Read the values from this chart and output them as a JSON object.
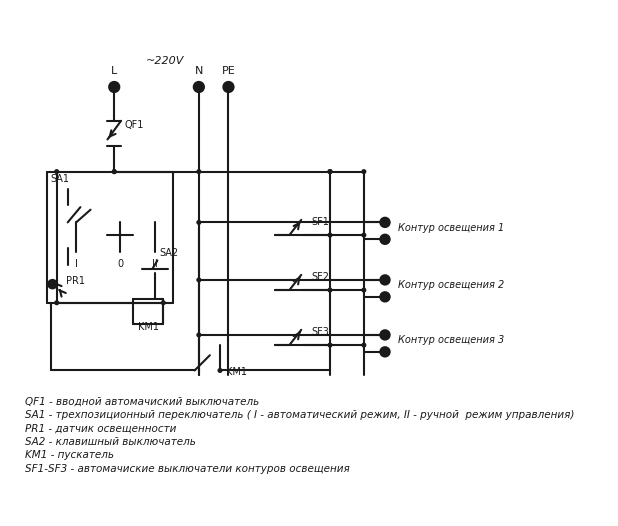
{
  "background_color": "#ffffff",
  "line_color": "#1a1a1a",
  "line_width": 1.5,
  "title_220v": "~220V",
  "label_L": "L",
  "label_N": "N",
  "label_PE": "PE",
  "label_QF1": "QF1",
  "label_SA1": "SA1",
  "label_PR1": "PR1",
  "label_SA2": "SA2",
  "label_KM1_box": "KM1",
  "label_KM1_contact": "KM1",
  "label_SF1": "SF1",
  "label_SF2": "SF2",
  "label_SF3": "SF3",
  "label_I": "I",
  "label_0": "0",
  "label_II": "II",
  "label_contour1": "Контур освещения 1",
  "label_contour2": "Контур освещения 2",
  "label_contour3": "Контур освещения 3",
  "legend_lines": [
    "QF1 - вводной автомачиский выключатель",
    "SA1 - трехпозиционный переключатель ( I - автоматический режим, II - ручной  режим управления)",
    "PR1 - датчик освещенности",
    "SA2 - клавишный выключатель",
    "KM1 - пускатель",
    "SF1-SF3 - автомачиские выключатели контуров освещения"
  ],
  "font_size_legend": 7.5,
  "font_size_labels": 8
}
